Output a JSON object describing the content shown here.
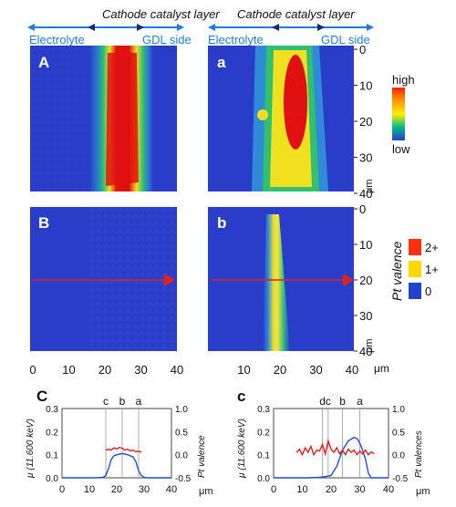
{
  "header": {
    "left": {
      "title": "Cathode catalyst layer",
      "electrolyte": "Electrolyte",
      "gdl": "GDL side"
    },
    "right": {
      "title": "Cathode catalyst layer",
      "electrolyte": "Electrolyte",
      "gdl": "GDL side"
    }
  },
  "panels": {
    "A": "A",
    "a": "a",
    "B": "B",
    "b": "b",
    "C": "C",
    "c": "c"
  },
  "axes": {
    "x_ticks_maps": [
      "0",
      "10",
      "20",
      "30",
      "40"
    ],
    "y_ticks_maps": [
      "0",
      "10",
      "20",
      "30",
      "40"
    ],
    "micron_label": "μm"
  },
  "colorbar_top": {
    "high": "high",
    "low": "low"
  },
  "colorbar_valence": {
    "title": "Pt  valence",
    "labels": [
      "2+",
      "1+",
      "0"
    ]
  },
  "colors": {
    "background_blue": "#2a3dc9",
    "red": "#e01010",
    "yellow": "#f0e020",
    "green": "#30c070",
    "arrow_red": "#e02020",
    "header_blue": "#1e7fd8",
    "cb_high": "#ff2000",
    "cb_mid1": "#ff9900",
    "cb_mid2": "#ffee00",
    "cb_mid3": "#00bb88",
    "cb_low": "#2244cc"
  },
  "chart_data": [
    {
      "type": "line",
      "panel": "C",
      "xlabel": "μm",
      "ylabel_left": "μ (11.600 keV)",
      "ylabel_right": "Pt valence",
      "xlim": [
        0,
        40
      ],
      "ylim_left": [
        0,
        0.3
      ],
      "ylim_right": [
        -0.5,
        1.0
      ],
      "x_ticks": [
        0,
        10,
        20,
        30,
        40
      ],
      "yleft_ticks": [
        "0.3",
        "0.2",
        "0.1",
        "0.0"
      ],
      "yright_ticks": [
        "1.0",
        "0.5",
        "0.0",
        "-0.5"
      ],
      "markers": [
        {
          "label": "c",
          "x": 16
        },
        {
          "label": "b",
          "x": 22
        },
        {
          "label": "a",
          "x": 28
        }
      ],
      "series": [
        {
          "axis": "left",
          "color": "#1f4fd8",
          "x": [
            0,
            12,
            15,
            16,
            17,
            18,
            19,
            20,
            22,
            24,
            26,
            27,
            28,
            29,
            30,
            31,
            40
          ],
          "y": [
            0.0,
            0.0,
            0.002,
            0.01,
            0.04,
            0.08,
            0.095,
            0.1,
            0.105,
            0.1,
            0.09,
            0.07,
            0.03,
            0.01,
            0.002,
            0.0,
            0.0
          ]
        },
        {
          "axis": "right",
          "color": "#e02020",
          "x": [
            16,
            17,
            18,
            19,
            20,
            21,
            22,
            23,
            24,
            25,
            26,
            27,
            28,
            29
          ],
          "y": [
            0.1,
            0.12,
            0.1,
            0.15,
            0.12,
            0.16,
            0.14,
            0.1,
            0.12,
            0.08,
            0.1,
            0.06,
            0.08,
            0.05
          ]
        }
      ]
    },
    {
      "type": "line",
      "panel": "c",
      "xlabel": "μm",
      "ylabel_left": "μ (11.600 keV)",
      "ylabel_right": "Pt valences",
      "xlim": [
        0,
        40
      ],
      "ylim_left": [
        0,
        0.3
      ],
      "ylim_right": [
        -0.5,
        1.0
      ],
      "x_ticks": [
        0,
        10,
        20,
        30,
        40
      ],
      "yleft_ticks": [
        "0.3",
        "0.2",
        "0.1",
        "0.0"
      ],
      "yright_ticks": [
        "1.0",
        "0.5",
        "0.0",
        "-0.5"
      ],
      "markers": [
        {
          "label": "d",
          "x": 17
        },
        {
          "label": "c",
          "x": 19
        },
        {
          "label": "b",
          "x": 24
        },
        {
          "label": "a",
          "x": 30
        }
      ],
      "series": [
        {
          "axis": "left",
          "color": "#1f4fd8",
          "x": [
            0,
            12,
            16,
            18,
            20,
            22,
            24,
            26,
            28,
            29,
            30,
            31,
            32,
            33,
            34,
            40
          ],
          "y": [
            0.0,
            0.0,
            0.002,
            0.005,
            0.01,
            0.05,
            0.12,
            0.16,
            0.175,
            0.17,
            0.15,
            0.12,
            0.08,
            0.02,
            0.0,
            0.0
          ]
        },
        {
          "axis": "right",
          "color": "#e02020",
          "x": [
            8,
            9,
            10,
            11,
            12,
            13,
            14,
            15,
            16,
            17,
            18,
            19,
            20,
            21,
            22,
            23,
            24,
            25,
            26,
            27,
            28,
            29,
            30,
            31,
            32,
            33,
            34,
            35
          ],
          "y": [
            0.05,
            0.12,
            0.0,
            0.15,
            0.05,
            0.18,
            0.0,
            0.1,
            0.08,
            0.22,
            0.02,
            0.3,
            0.12,
            0.05,
            0.15,
            0.02,
            0.1,
            0.0,
            0.12,
            0.05,
            0.1,
            0.0,
            0.08,
            0.02,
            0.1,
            0.0,
            0.06,
            0.02
          ]
        }
      ]
    }
  ]
}
